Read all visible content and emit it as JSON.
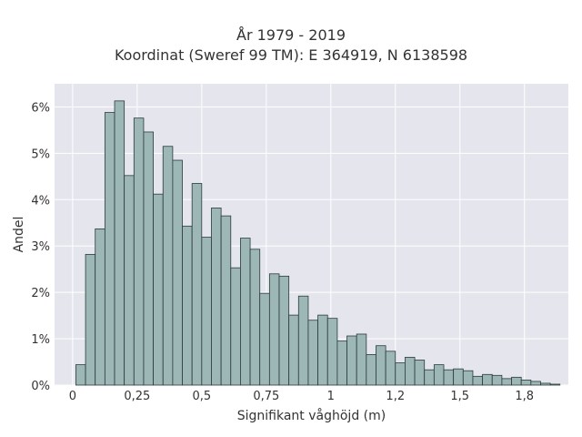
{
  "chart_data": {
    "type": "bar",
    "title": "År 1979 - 2019",
    "subtitle": "Koordinat (Sweref 99 TM): E 364919, N 6138598",
    "xlabel": "Signifikant våghöjd (m)",
    "ylabel": "Andel",
    "xlim": [
      -0.07,
      1.92
    ],
    "ylim": [
      0,
      6.5
    ],
    "x_ticks": [
      {
        "value": 0,
        "label": "0"
      },
      {
        "value": 0.25,
        "label": "0,25"
      },
      {
        "value": 0.5,
        "label": "0,5"
      },
      {
        "value": 0.75,
        "label": "0,75"
      },
      {
        "value": 1,
        "label": "1"
      },
      {
        "value": 1.25,
        "label": "1,2"
      },
      {
        "value": 1.5,
        "label": "1,5"
      },
      {
        "value": 1.75,
        "label": "1,8"
      }
    ],
    "y_ticks": [
      {
        "value": 0,
        "label": "0%"
      },
      {
        "value": 1,
        "label": "1%"
      },
      {
        "value": 2,
        "label": "2%"
      },
      {
        "value": 3,
        "label": "3%"
      },
      {
        "value": 4,
        "label": "4%"
      },
      {
        "value": 5,
        "label": "5%"
      },
      {
        "value": 6,
        "label": "6%"
      }
    ],
    "bin_start": 0.0125,
    "bin_width": 0.0375,
    "values": [
      0.44,
      2.82,
      3.37,
      5.88,
      6.13,
      4.52,
      5.76,
      5.46,
      4.12,
      5.15,
      4.85,
      3.43,
      4.35,
      3.19,
      3.82,
      3.65,
      2.53,
      3.17,
      2.93,
      1.98,
      2.4,
      2.35,
      1.51,
      1.92,
      1.4,
      1.51,
      1.44,
      0.95,
      1.06,
      1.1,
      0.66,
      0.85,
      0.73,
      0.48,
      0.6,
      0.54,
      0.33,
      0.44,
      0.33,
      0.35,
      0.31,
      0.19,
      0.23,
      0.21,
      0.14,
      0.17,
      0.11,
      0.08,
      0.04,
      0.02
    ],
    "grid": true,
    "legend": "none",
    "colors": {
      "bar_fill": "#9db6b6",
      "bar_edge": "#2b3b3b",
      "plot_bg": "#e5e5ee",
      "grid": "#ffffff"
    }
  }
}
